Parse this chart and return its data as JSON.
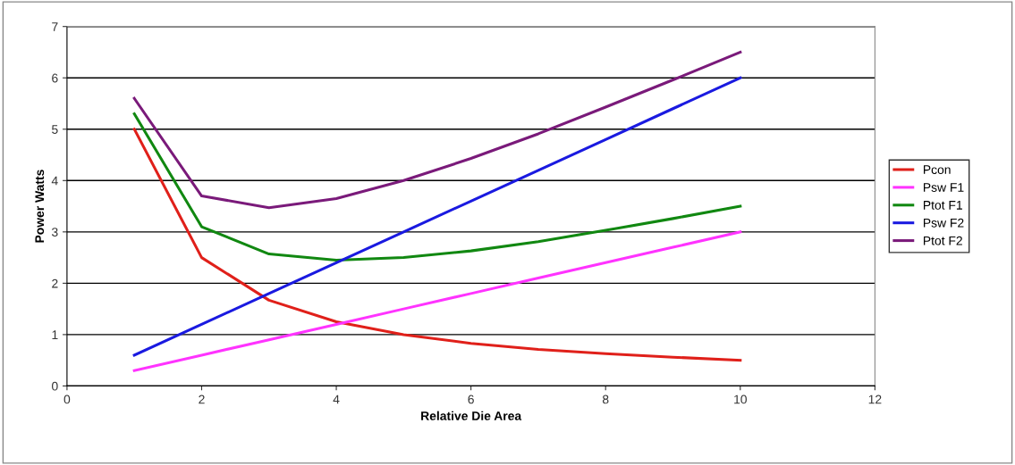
{
  "chart_data": {
    "type": "line",
    "xlabel": "Relative Die Area",
    "ylabel": "Power Watts",
    "x": [
      1,
      2,
      3,
      4,
      5,
      6,
      7,
      8,
      9,
      10
    ],
    "series": [
      {
        "name": "Pcon",
        "color": "#e0201a",
        "values": [
          5,
          2.5,
          1.67,
          1.25,
          1.0,
          0.83,
          0.71,
          0.63,
          0.56,
          0.5
        ]
      },
      {
        "name": "Psw F1",
        "color": "#ff33ff",
        "values": [
          0.3,
          0.6,
          0.9,
          1.2,
          1.5,
          1.8,
          2.1,
          2.4,
          2.7,
          3.0
        ]
      },
      {
        "name": "Ptot F1",
        "color": "#118811",
        "values": [
          5.3,
          3.1,
          2.57,
          2.45,
          2.5,
          2.63,
          2.81,
          3.03,
          3.26,
          3.5
        ]
      },
      {
        "name": "Psw F2",
        "color": "#1a1ae0",
        "values": [
          0.6,
          1.2,
          1.8,
          2.4,
          3.0,
          3.6,
          4.2,
          4.8,
          5.4,
          6.0
        ]
      },
      {
        "name": "Ptot F2",
        "color": "#7a1a7a",
        "values": [
          5.6,
          3.7,
          3.47,
          3.65,
          4.0,
          4.43,
          4.91,
          5.43,
          5.96,
          6.5
        ]
      }
    ],
    "xlim": [
      0,
      12
    ],
    "xticks": [
      0,
      2,
      4,
      6,
      8,
      10,
      12
    ],
    "ylim": [
      0,
      7
    ],
    "yticks": [
      0,
      1,
      2,
      3,
      4,
      5,
      6,
      7
    ],
    "grid": "y",
    "legend": "right",
    "marker": "none",
    "line_style": "solid"
  }
}
